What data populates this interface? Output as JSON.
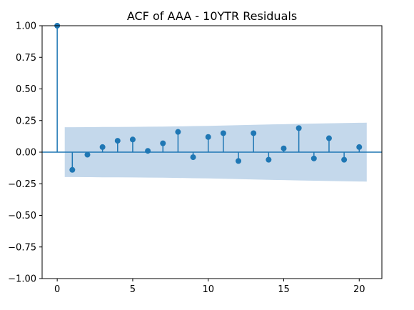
{
  "chart_data": {
    "type": "stem",
    "title": "ACF of AAA - 10YTR Residuals",
    "xlabel": "",
    "ylabel": "",
    "xlim": [
      -1,
      21.5
    ],
    "ylim": [
      -1.0,
      1.0
    ],
    "x_ticks": [
      0,
      5,
      10,
      15,
      20
    ],
    "y_ticks": [
      -1.0,
      -0.75,
      -0.5,
      -0.25,
      0.0,
      0.25,
      0.5,
      0.75,
      1.0
    ],
    "x_tick_labels": [
      "0",
      "5",
      "10",
      "15",
      "20"
    ],
    "y_tick_labels": [
      "−1.00",
      "−0.75",
      "−0.50",
      "−0.25",
      "0.00",
      "0.25",
      "0.50",
      "0.75",
      "1.00"
    ],
    "lags": [
      0,
      1,
      2,
      3,
      4,
      5,
      6,
      7,
      8,
      9,
      10,
      11,
      12,
      13,
      14,
      15,
      16,
      17,
      18,
      19,
      20
    ],
    "acf": [
      1.0,
      -0.14,
      -0.02,
      0.04,
      0.09,
      0.1,
      0.01,
      0.07,
      0.16,
      -0.04,
      0.12,
      0.15,
      -0.07,
      0.15,
      -0.06,
      0.03,
      0.19,
      -0.05,
      0.11,
      -0.06,
      0.04
    ],
    "confidence_band": {
      "lags": [
        0.5,
        1,
        2,
        3,
        4,
        5,
        6,
        7,
        8,
        9,
        10,
        11,
        12,
        13,
        14,
        15,
        16,
        17,
        18,
        19,
        20,
        20.5
      ],
      "upper": [
        0.197,
        0.197,
        0.198,
        0.199,
        0.199,
        0.2,
        0.201,
        0.202,
        0.204,
        0.206,
        0.208,
        0.21,
        0.213,
        0.216,
        0.219,
        0.221,
        0.224,
        0.226,
        0.228,
        0.23,
        0.232,
        0.233
      ],
      "lower": [
        -0.197,
        -0.197,
        -0.198,
        -0.199,
        -0.199,
        -0.2,
        -0.201,
        -0.202,
        -0.204,
        -0.206,
        -0.208,
        -0.21,
        -0.213,
        -0.216,
        -0.219,
        -0.221,
        -0.224,
        -0.226,
        -0.228,
        -0.23,
        -0.232,
        -0.233
      ]
    },
    "colors": {
      "marker": "#1f77b4",
      "band": "#c4d8eb",
      "axes": "#000000"
    },
    "grid": false
  }
}
